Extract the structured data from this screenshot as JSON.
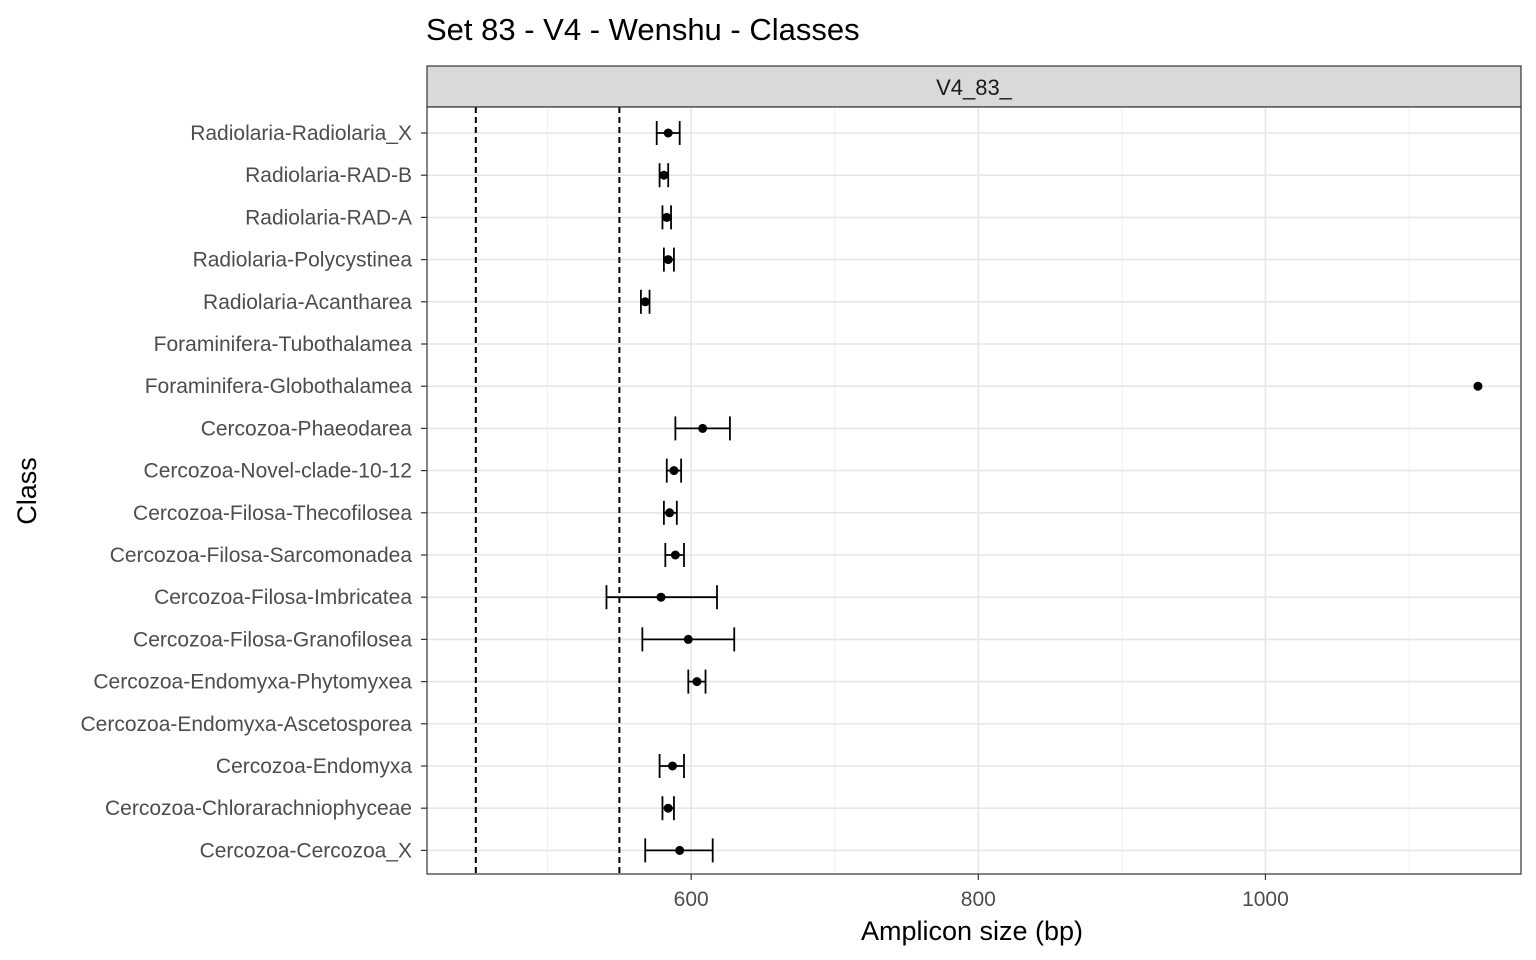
{
  "chart_data": {
    "type": "scatter",
    "title": "Set 83 - V4 - Wenshu - Classes",
    "facet_label": "V4_83_",
    "xlabel": "Amplicon size (bp)",
    "ylabel": "Class",
    "xlim": [
      416,
      1178
    ],
    "x_ticks": [
      600,
      800,
      1000
    ],
    "x_tick_labels": [
      "600",
      "800",
      "1000"
    ],
    "reference_lines": [
      450,
      550
    ],
    "grid": true,
    "categories": [
      "Radiolaria-Radiolaria_X",
      "Radiolaria-RAD-B",
      "Radiolaria-RAD-A",
      "Radiolaria-Polycystinea",
      "Radiolaria-Acantharea",
      "Foraminifera-Tubothalamea",
      "Foraminifera-Globothalamea",
      "Cercozoa-Phaeodarea",
      "Cercozoa-Novel-clade-10-12",
      "Cercozoa-Filosa-Thecofilosea",
      "Cercozoa-Filosa-Sarcomonadea",
      "Cercozoa-Filosa-Imbricatea",
      "Cercozoa-Filosa-Granofilosea",
      "Cercozoa-Endomyxa-Phytomyxea",
      "Cercozoa-Endomyxa-Ascetosporea",
      "Cercozoa-Endomyxa",
      "Cercozoa-Chlorarachniophyceae",
      "Cercozoa-Cercozoa_X"
    ],
    "points": [
      {
        "class": "Radiolaria-Radiolaria_X",
        "mean": 584,
        "low": 576,
        "high": 592
      },
      {
        "class": "Radiolaria-RAD-B",
        "mean": 581,
        "low": 578,
        "high": 584
      },
      {
        "class": "Radiolaria-RAD-A",
        "mean": 583,
        "low": 580,
        "high": 586
      },
      {
        "class": "Radiolaria-Polycystinea",
        "mean": 584,
        "low": 581,
        "high": 588
      },
      {
        "class": "Radiolaria-Acantharea",
        "mean": 568,
        "low": 565,
        "high": 571
      },
      {
        "class": "Foraminifera-Tubothalamea",
        "mean": null,
        "low": null,
        "high": null
      },
      {
        "class": "Foraminifera-Globothalamea",
        "mean": 1148,
        "low": null,
        "high": null
      },
      {
        "class": "Cercozoa-Phaeodarea",
        "mean": 608,
        "low": 589,
        "high": 627
      },
      {
        "class": "Cercozoa-Novel-clade-10-12",
        "mean": 588,
        "low": 583,
        "high": 593
      },
      {
        "class": "Cercozoa-Filosa-Thecofilosea",
        "mean": 585,
        "low": 581,
        "high": 590
      },
      {
        "class": "Cercozoa-Filosa-Sarcomonadea",
        "mean": 589,
        "low": 582,
        "high": 595
      },
      {
        "class": "Cercozoa-Filosa-Imbricatea",
        "mean": 579,
        "low": 541,
        "high": 618
      },
      {
        "class": "Cercozoa-Filosa-Granofilosea",
        "mean": 598,
        "low": 566,
        "high": 630
      },
      {
        "class": "Cercozoa-Endomyxa-Phytomyxea",
        "mean": 604,
        "low": 598,
        "high": 610
      },
      {
        "class": "Cercozoa-Endomyxa-Ascetosporea",
        "mean": null,
        "low": null,
        "high": null
      },
      {
        "class": "Cercozoa-Endomyxa",
        "mean": 587,
        "low": 578,
        "high": 595
      },
      {
        "class": "Cercozoa-Chlorarachniophyceae",
        "mean": 584,
        "low": 580,
        "high": 588
      },
      {
        "class": "Cercozoa-Cercozoa_X",
        "mean": 592,
        "low": 568,
        "high": 615
      }
    ]
  }
}
